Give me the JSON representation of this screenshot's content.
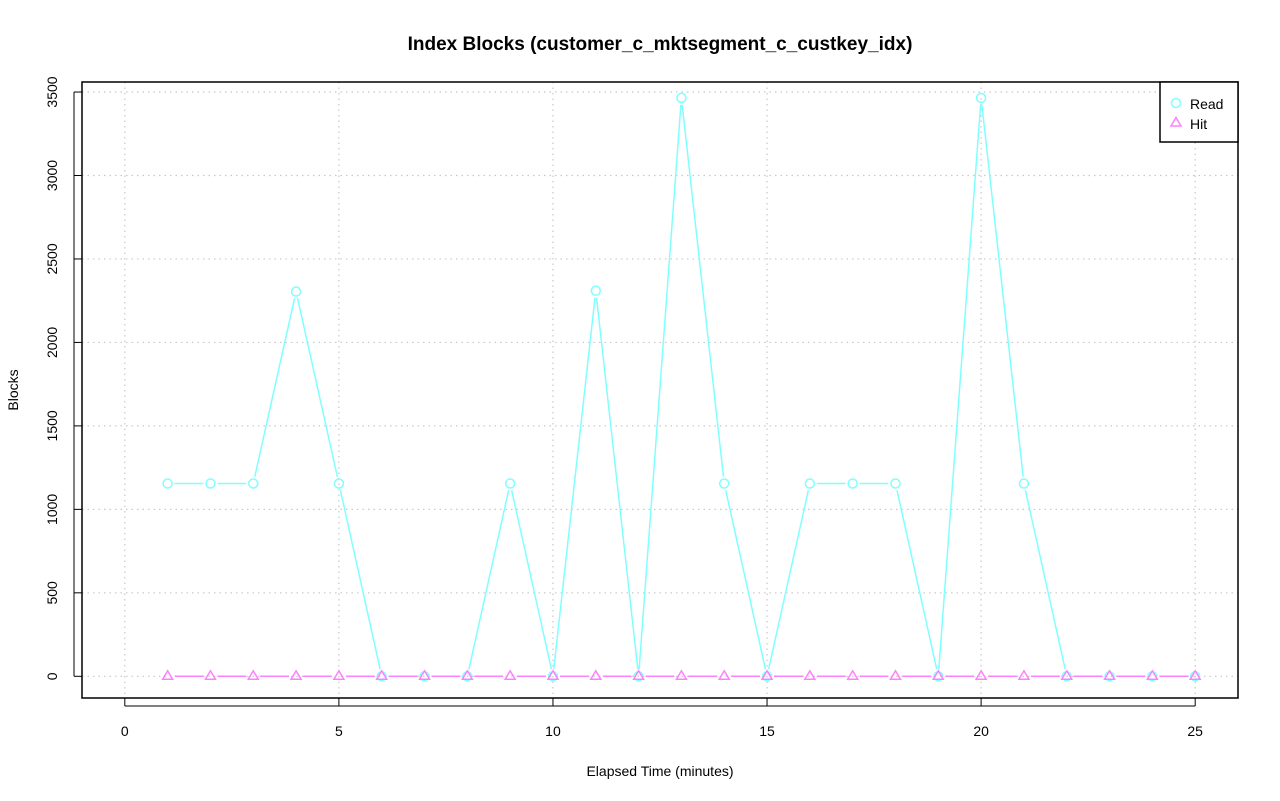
{
  "chart_data": {
    "type": "line",
    "title": "Index Blocks (customer_c_mktsegment_c_custkey_idx)",
    "xlabel": "Elapsed Time (minutes)",
    "ylabel": "Blocks",
    "xlim": [
      -1,
      26
    ],
    "ylim": [
      -130,
      3560
    ],
    "x_ticks": [
      0,
      5,
      10,
      15,
      20,
      25
    ],
    "y_ticks": [
      0,
      500,
      1000,
      1500,
      2000,
      2500,
      3000,
      3500
    ],
    "grid": true,
    "legend_position": "top-right",
    "x": [
      1,
      2,
      3,
      4,
      5,
      6,
      7,
      8,
      9,
      10,
      11,
      12,
      13,
      14,
      15,
      16,
      17,
      18,
      19,
      20,
      21,
      22,
      23,
      24,
      25
    ],
    "series": [
      {
        "name": "Read",
        "color": "#80FFFF",
        "marker": "circle",
        "values": [
          1155,
          1155,
          1155,
          2305,
          1155,
          0,
          0,
          0,
          1155,
          0,
          2310,
          0,
          3465,
          1155,
          0,
          1155,
          1155,
          1155,
          0,
          3465,
          1155,
          0,
          0,
          0,
          0
        ]
      },
      {
        "name": "Hit",
        "color": "#FF80FF",
        "marker": "triangle",
        "values": [
          0,
          0,
          0,
          0,
          0,
          0,
          0,
          0,
          0,
          0,
          0,
          0,
          0,
          0,
          0,
          0,
          0,
          0,
          0,
          0,
          0,
          0,
          0,
          0,
          0
        ]
      }
    ]
  }
}
